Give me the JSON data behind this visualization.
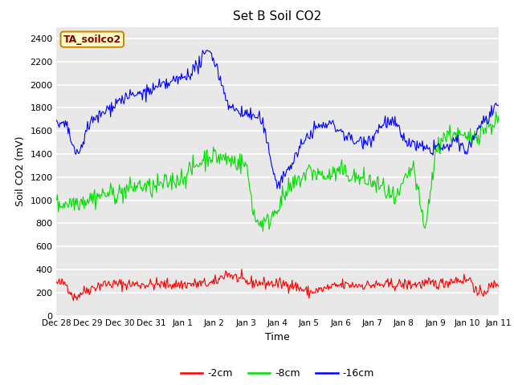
{
  "title": "Set B Soil CO2",
  "xlabel": "Time",
  "ylabel": "Soil CO2 (mV)",
  "ylim": [
    0,
    2500
  ],
  "yticks": [
    0,
    200,
    400,
    600,
    800,
    1000,
    1200,
    1400,
    1600,
    1800,
    2000,
    2200,
    2400
  ],
  "bg_color": "#e8e8e8",
  "fig_color": "#ffffff",
  "legend_label": "TA_soilco2",
  "legend_bg": "#ffffcc",
  "legend_border": "#cc8800",
  "legend_text_color": "#8B0000",
  "line_red": "#ff0000",
  "line_green": "#00dd00",
  "line_blue": "#0000ff",
  "series_labels": [
    "-2cm",
    "-8cm",
    "-16cm"
  ],
  "n_points": 500,
  "x_tick_labels": [
    "Dec 28",
    "Dec 29",
    "Dec 30",
    "Dec 31",
    "Jan 1",
    "Jan 2",
    "Jan 3",
    "Jan 4",
    "Jan 5",
    "Jan 6",
    "Jan 7",
    "Jan 8",
    "Jan 9",
    "Jan 10",
    "Jan 11"
  ],
  "x_tick_positions": [
    0,
    27,
    54,
    81,
    108,
    135,
    162,
    189,
    216,
    243,
    270,
    297,
    324,
    351,
    378
  ]
}
